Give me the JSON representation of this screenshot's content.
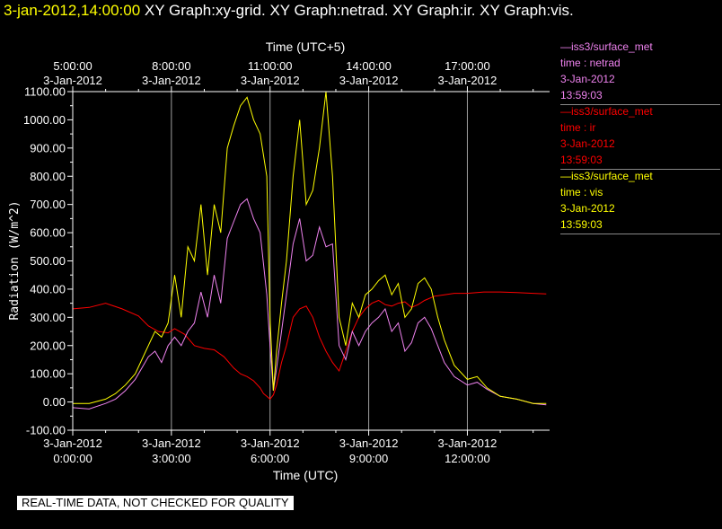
{
  "header": {
    "timestamp": "3-jan-2012,14:00:00",
    "titles": "XY Graph:xy-grid.  XY Graph:netrad.  XY Graph:ir.  XY Graph:vis."
  },
  "legend": [
    {
      "source": "—iss3/surface_met",
      "var": "time : netrad",
      "date": "3-Jan-2012",
      "time": "13:59:03",
      "color": "#ee82ee"
    },
    {
      "source": "—iss3/surface_met",
      "var": "time : ir",
      "date": "3-Jan-2012",
      "time": "13:59:03",
      "color": "#ff0000"
    },
    {
      "source": "—iss3/surface_met",
      "var": "time : vis",
      "date": "3-Jan-2012",
      "time": "13:59:03",
      "color": "#ffff00"
    }
  ],
  "disclaimer": "REAL-TIME DATA, NOT CHECKED FOR QUALITY",
  "chart_data": {
    "type": "line",
    "xlabel": "Time (UTC)",
    "x2label": "Time (UTC+5)",
    "ylabel": "Radiation (W/m^2)",
    "xlim": [
      0,
      14.5
    ],
    "ylim": [
      -100,
      1100
    ],
    "grid": true,
    "yticks": [
      -100,
      0,
      100,
      200,
      300,
      400,
      500,
      600,
      700,
      800,
      900,
      1000,
      1100
    ],
    "ytick_labels": [
      "-100.00",
      "0.00",
      "100.00",
      "200.00",
      "300.00",
      "400.00",
      "500.00",
      "600.00",
      "700.00",
      "800.00",
      "900.00",
      "1000.00",
      "1100.00"
    ],
    "xticks": [
      0,
      3,
      6,
      9,
      12
    ],
    "xtick_labels_bottom": [
      [
        "3-Jan-2012",
        "0:00:00"
      ],
      [
        "3-Jan-2012",
        "3:00:00"
      ],
      [
        "3-Jan-2012",
        "6:00:00"
      ],
      [
        "3-Jan-2012",
        "9:00:00"
      ],
      [
        "3-Jan-2012",
        "12:00:00"
      ]
    ],
    "xtick_labels_top": [
      [
        "5:00:00",
        "3-Jan-2012"
      ],
      [
        "8:00:00",
        "3-Jan-2012"
      ],
      [
        "11:00:00",
        "3-Jan-2012"
      ],
      [
        "14:00:00",
        "3-Jan-2012"
      ],
      [
        "17:00:00",
        "3-Jan-2012"
      ]
    ],
    "series": [
      {
        "name": "ir",
        "color": "#ff0000",
        "x": [
          0,
          0.5,
          1.0,
          1.5,
          2.0,
          2.3,
          2.6,
          2.9,
          3.1,
          3.4,
          3.7,
          4.0,
          4.3,
          4.6,
          4.9,
          5.1,
          5.3,
          5.5,
          5.7,
          5.8,
          5.9,
          6.0,
          6.1,
          6.2,
          6.35,
          6.5,
          6.7,
          6.9,
          7.1,
          7.3,
          7.5,
          7.7,
          7.9,
          8.1,
          8.3,
          8.5,
          8.7,
          8.9,
          9.1,
          9.3,
          9.5,
          9.7,
          9.9,
          10.1,
          10.3,
          10.5,
          10.7,
          11.0,
          11.3,
          11.6,
          12.0,
          12.5,
          13.0,
          13.5,
          14.0,
          14.4
        ],
        "y": [
          330,
          335,
          350,
          330,
          305,
          270,
          250,
          245,
          260,
          240,
          200,
          190,
          185,
          160,
          120,
          100,
          90,
          75,
          50,
          30,
          20,
          10,
          25,
          60,
          140,
          200,
          300,
          330,
          340,
          300,
          230,
          180,
          140,
          110,
          180,
          250,
          300,
          330,
          350,
          360,
          345,
          340,
          350,
          355,
          335,
          345,
          360,
          375,
          380,
          385,
          385,
          390,
          390,
          388,
          385,
          383
        ]
      },
      {
        "name": "netrad",
        "color": "#ee82ee",
        "x": [
          0,
          0.5,
          1.0,
          1.3,
          1.6,
          1.9,
          2.1,
          2.3,
          2.5,
          2.7,
          2.9,
          3.1,
          3.3,
          3.5,
          3.7,
          3.9,
          4.1,
          4.3,
          4.5,
          4.7,
          4.9,
          5.1,
          5.3,
          5.5,
          5.7,
          5.9,
          6.0,
          6.1,
          6.2,
          6.35,
          6.5,
          6.7,
          6.9,
          7.1,
          7.3,
          7.5,
          7.7,
          7.9,
          8.1,
          8.3,
          8.5,
          8.7,
          8.9,
          9.1,
          9.3,
          9.5,
          9.7,
          9.9,
          10.1,
          10.3,
          10.5,
          10.7,
          10.9,
          11.1,
          11.3,
          11.6,
          12.0,
          12.3,
          12.6,
          13.0,
          13.5,
          14.0,
          14.4
        ],
        "y": [
          -20,
          -25,
          -5,
          10,
          40,
          80,
          120,
          160,
          180,
          140,
          200,
          230,
          200,
          250,
          280,
          390,
          300,
          450,
          350,
          580,
          640,
          700,
          720,
          650,
          600,
          380,
          200,
          40,
          120,
          250,
          380,
          560,
          650,
          500,
          520,
          620,
          550,
          560,
          200,
          150,
          250,
          200,
          250,
          280,
          300,
          330,
          250,
          280,
          180,
          210,
          280,
          300,
          260,
          200,
          140,
          90,
          60,
          70,
          45,
          20,
          10,
          -5,
          -10
        ]
      },
      {
        "name": "vis",
        "color": "#ffff00",
        "x": [
          0,
          0.5,
          1.0,
          1.3,
          1.6,
          1.9,
          2.1,
          2.3,
          2.5,
          2.7,
          2.9,
          3.1,
          3.3,
          3.5,
          3.7,
          3.9,
          4.1,
          4.3,
          4.5,
          4.7,
          4.9,
          5.1,
          5.3,
          5.5,
          5.7,
          5.9,
          6.0,
          6.1,
          6.2,
          6.35,
          6.5,
          6.7,
          6.9,
          7.1,
          7.3,
          7.5,
          7.7,
          7.9,
          8.1,
          8.3,
          8.5,
          8.7,
          8.9,
          9.1,
          9.3,
          9.5,
          9.7,
          9.9,
          10.1,
          10.3,
          10.5,
          10.7,
          10.9,
          11.1,
          11.3,
          11.6,
          12.0,
          12.3,
          12.6,
          13.0,
          13.5,
          14.0,
          14.4
        ],
        "y": [
          -5,
          -5,
          10,
          30,
          60,
          100,
          150,
          200,
          250,
          230,
          280,
          450,
          300,
          550,
          500,
          700,
          450,
          700,
          600,
          900,
          980,
          1050,
          1080,
          1000,
          950,
          800,
          300,
          40,
          180,
          350,
          500,
          800,
          1000,
          700,
          750,
          900,
          1100,
          800,
          300,
          200,
          350,
          300,
          380,
          400,
          430,
          450,
          380,
          420,
          300,
          330,
          420,
          440,
          400,
          300,
          220,
          130,
          80,
          90,
          50,
          20,
          10,
          -5,
          -5
        ]
      }
    ]
  }
}
